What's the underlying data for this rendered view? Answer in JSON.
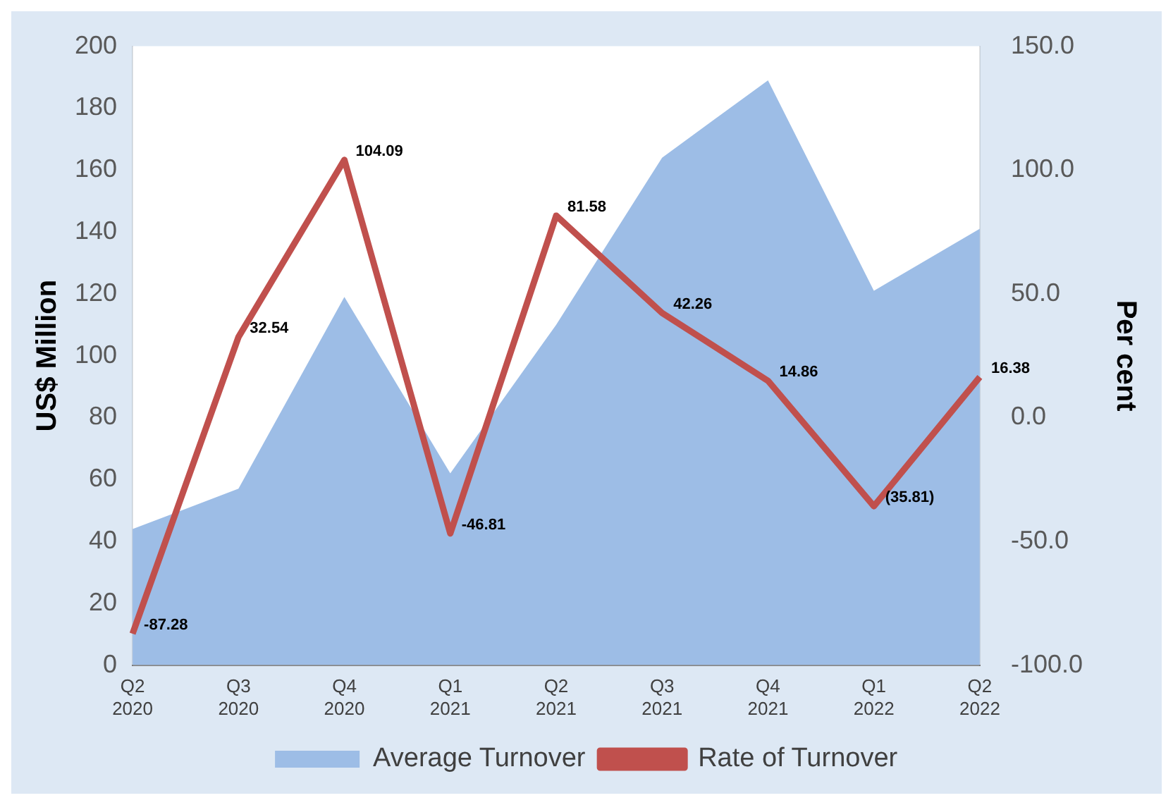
{
  "chart_data": {
    "type": "area",
    "xlabel": null,
    "ylabel": "US$ Million",
    "y2label": "Per cent",
    "categories": [
      "Q2 2020",
      "Q3 2020",
      "Q4 2020",
      "Q1 2021",
      "Q2 2021",
      "Q3 2021",
      "Q4 2021",
      "Q1 2022",
      "Q2 2022"
    ],
    "series": [
      {
        "name": "Average Turnover",
        "color": "#9dbde6",
        "values": [
          44,
          57,
          119,
          62,
          110,
          164,
          189,
          121,
          141
        ]
      },
      {
        "name": "Rate of Turnover",
        "type": "line",
        "axis": "y2",
        "color": "#c0504d",
        "values": [
          -87.28,
          32.54,
          104.09,
          -46.81,
          81.58,
          42.26,
          14.86,
          -35.81,
          16.38
        ],
        "value_labels": [
          "-87.28",
          "32.54",
          "104.09",
          "-46.81",
          "81.58",
          "42.26",
          "14.86",
          "(35.81)",
          "16.38"
        ]
      }
    ],
    "ylim": [
      0,
      200
    ],
    "yticks": [
      0,
      20,
      40,
      60,
      80,
      100,
      120,
      140,
      160,
      180,
      200
    ],
    "y2lim": [
      -100,
      150
    ],
    "y2ticks": [
      {
        "value": -100,
        "label": "-100.0"
      },
      {
        "value": -50,
        "label": "-50.0"
      },
      {
        "value": 0,
        "label": "0.0"
      },
      {
        "value": 50,
        "label": "50.0"
      },
      {
        "value": 100,
        "label": "100.0"
      },
      {
        "value": 150,
        "label": "150.0"
      }
    ],
    "grid": false,
    "legend": "bottom",
    "marker": "none",
    "line_style": "solid"
  }
}
